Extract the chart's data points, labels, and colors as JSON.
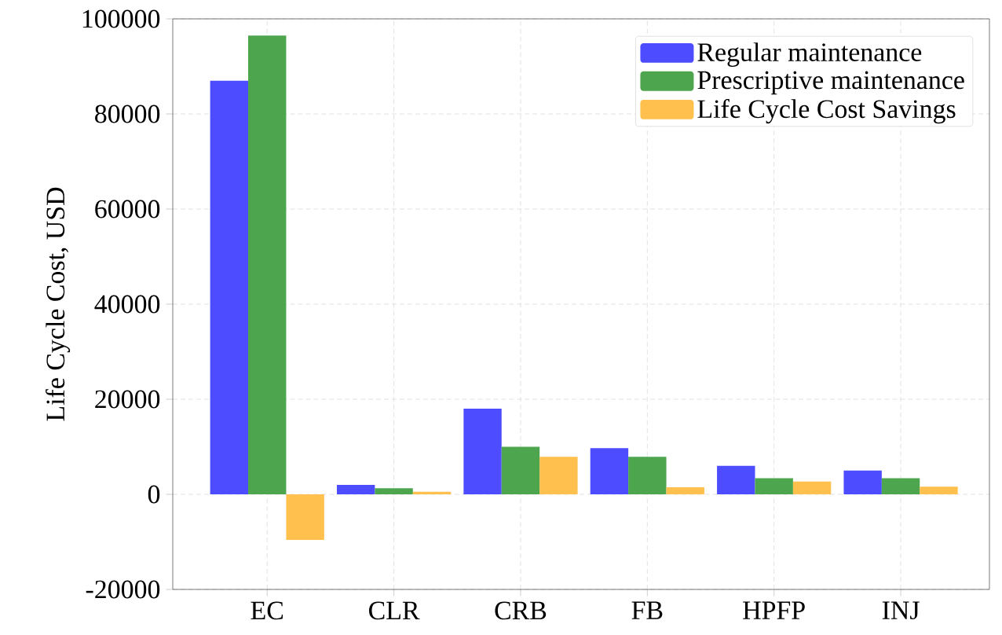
{
  "chart_data": {
    "type": "bar",
    "ylabel": "Life Cycle Cost, USD",
    "categories": [
      "EC",
      "CLR",
      "CRB",
      "FB",
      "HPFP",
      "INJ"
    ],
    "series": [
      {
        "name": "Regular maintenance",
        "color": "#4d4dff",
        "values": [
          87000,
          2000,
          18000,
          9700,
          6000,
          5000
        ]
      },
      {
        "name": "Prescriptive maintenance",
        "color": "#4da64d",
        "values": [
          96500,
          1300,
          10000,
          7900,
          3400,
          3400
        ]
      },
      {
        "name": "Life Cycle Cost Savings",
        "color": "#ffc04d",
        "values": [
          -9600,
          550,
          7900,
          1500,
          2700,
          1600
        ]
      }
    ],
    "ylim": [
      -20000,
      100000
    ],
    "yticks": [
      -20000,
      0,
      20000,
      40000,
      60000,
      80000,
      100000
    ],
    "grid": true,
    "legend": "top right"
  }
}
